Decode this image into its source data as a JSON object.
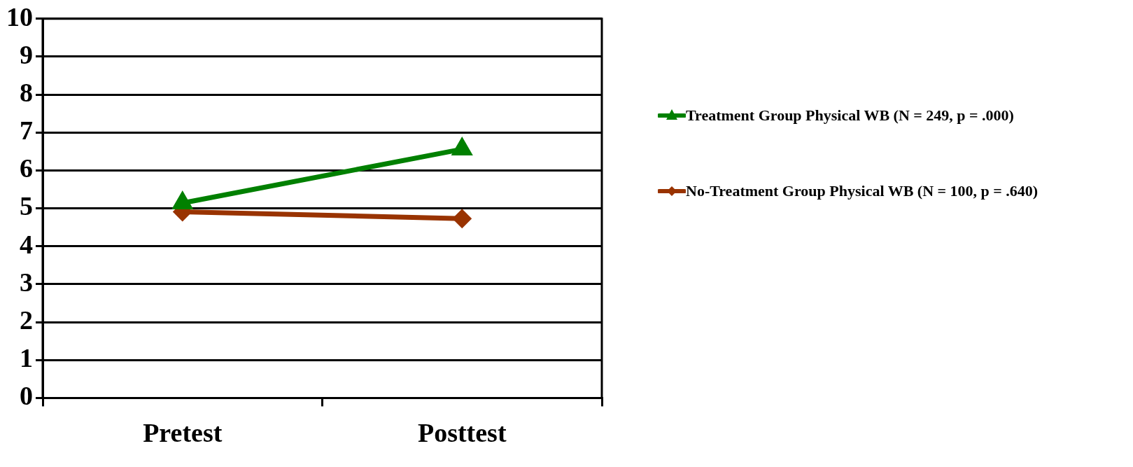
{
  "chart_data": {
    "type": "line",
    "categories": [
      "Pretest",
      "Posttest"
    ],
    "series": [
      {
        "name": "Treatment Group Physical WB (N = 249, p = .000)",
        "color": "#008000",
        "values": [
          5.14,
          6.56
        ],
        "marker": "triangle"
      },
      {
        "name": "No-Treatment Group Physical WB (N  =  100, p = .640)",
        "color": "#993300",
        "values": [
          4.91,
          4.73
        ],
        "marker": "diamond"
      }
    ],
    "ylim": [
      0,
      10
    ],
    "yticks": [
      0,
      1,
      2,
      3,
      4,
      5,
      6,
      7,
      8,
      9,
      10
    ],
    "grid": "y",
    "legend": "right",
    "line_style": "solid"
  }
}
